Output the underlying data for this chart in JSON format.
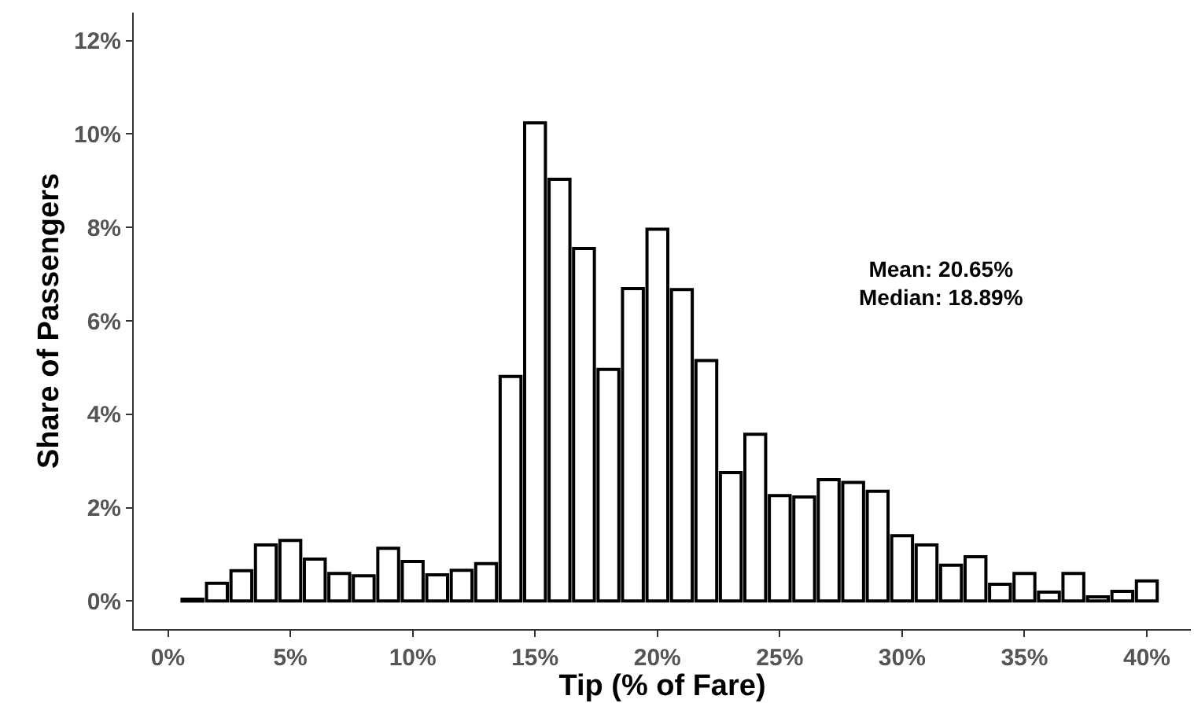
{
  "chart_data": {
    "type": "bar",
    "xlabel": "Tip (% of Fare)",
    "ylabel": "Share of Passengers",
    "x": [
      1,
      2,
      3,
      4,
      5,
      6,
      7,
      8,
      9,
      10,
      11,
      12,
      13,
      14,
      15,
      16,
      17,
      18,
      19,
      20,
      21,
      22,
      23,
      24,
      25,
      26,
      27,
      28,
      29,
      30,
      31,
      32,
      33,
      34,
      35,
      36,
      37,
      38,
      39,
      40
    ],
    "values": [
      0.04,
      0.38,
      0.65,
      1.2,
      1.3,
      0.9,
      0.59,
      0.54,
      1.13,
      0.85,
      0.56,
      0.66,
      0.8,
      4.81,
      10.24,
      9.03,
      7.55,
      4.96,
      6.69,
      7.96,
      6.67,
      5.15,
      2.75,
      3.57,
      2.26,
      2.23,
      2.6,
      2.54,
      2.35,
      1.4,
      1.2,
      0.77,
      0.95,
      0.36,
      0.59,
      0.19,
      0.59,
      0.09,
      0.21,
      0.43
    ],
    "color": "#ffffff",
    "xlim": [
      -1.4,
      41.8
    ],
    "ylim": [
      -0.6,
      12.6
    ],
    "xticks": [
      {
        "value": 0,
        "label": "0%"
      },
      {
        "value": 5,
        "label": "5%"
      },
      {
        "value": 10,
        "label": "10%"
      },
      {
        "value": 15,
        "label": "15%"
      },
      {
        "value": 20,
        "label": "20%"
      },
      {
        "value": 25,
        "label": "25%"
      },
      {
        "value": 30,
        "label": "30%"
      },
      {
        "value": 35,
        "label": "35%"
      },
      {
        "value": 40,
        "label": "40%"
      }
    ],
    "yticks": [
      {
        "value": 0,
        "label": "0%"
      },
      {
        "value": 2,
        "label": "2%"
      },
      {
        "value": 4,
        "label": "4%"
      },
      {
        "value": 6,
        "label": "6%"
      },
      {
        "value": 8,
        "label": "8%"
      },
      {
        "value": 10,
        "label": "10%"
      },
      {
        "value": 12,
        "label": "12%"
      }
    ],
    "annotations": [
      "Mean: 20.65%\nMedian: 18.89%"
    ],
    "grid": false
  }
}
